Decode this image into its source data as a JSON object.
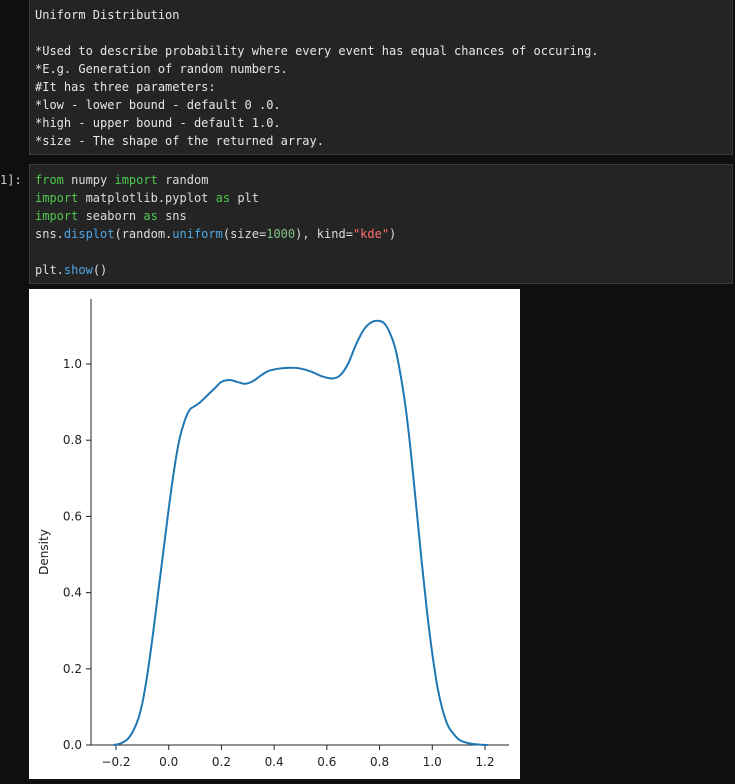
{
  "markdown_cell": {
    "lines": [
      "Uniform Distribution",
      "",
      "*Used to describe probability where every event has equal chances of occuring.",
      "*E.g. Generation of random numbers.",
      "#It has three parameters:",
      "*low - lower bound - default 0 .0.",
      "*high - upper bound - default 1.0.",
      "*size - The shape of the returned array."
    ]
  },
  "code_cell": {
    "prompt": "1]:",
    "line1": {
      "kw1": "from",
      "mod": " numpy ",
      "kw2": "import",
      "name": " random"
    },
    "line2": {
      "kw1": "import",
      "mod": " matplotlib.pyplot ",
      "kw2": "as",
      "name": " plt"
    },
    "line3": {
      "kw1": "import",
      "mod": " seaborn ",
      "kw2": "as",
      "name": " sns"
    },
    "line4": {
      "p1": "sns.",
      "f1": "displot",
      "p2": "(random.",
      "f2": "uniform",
      "p3": "(size=",
      "n1": "1000",
      "p4": "), kind=",
      "s1": "\"kde\"",
      "p5": ")"
    },
    "line6": {
      "p1": "plt.",
      "f1": "show",
      "p2": "()"
    }
  },
  "chart_data": {
    "type": "line",
    "title": "",
    "xlabel": "",
    "ylabel": "Density",
    "xlim": [
      -0.3,
      1.25
    ],
    "ylim": [
      0.0,
      1.15
    ],
    "xticks": [
      "−0.2",
      "0.0",
      "0.2",
      "0.4",
      "0.6",
      "0.8",
      "1.0",
      "1.2"
    ],
    "xtick_values": [
      -0.2,
      0.0,
      0.2,
      0.4,
      0.6,
      0.8,
      1.0,
      1.2
    ],
    "yticks": [
      "0.0",
      "0.2",
      "0.4",
      "0.6",
      "0.8",
      "1.0"
    ],
    "ytick_values": [
      0.0,
      0.2,
      0.4,
      0.6,
      0.8,
      1.0
    ],
    "grid": false,
    "line_color": "#1f77b4",
    "series": [
      {
        "x": [
          -0.21,
          -0.18,
          -0.15,
          -0.12,
          -0.1,
          -0.08,
          -0.06,
          -0.04,
          -0.02,
          0.0,
          0.02,
          0.04,
          0.06,
          0.08,
          0.1,
          0.12,
          0.15,
          0.18,
          0.2,
          0.23,
          0.26,
          0.29,
          0.32,
          0.35,
          0.38,
          0.42,
          0.46,
          0.5,
          0.54,
          0.58,
          0.62,
          0.65,
          0.68,
          0.71,
          0.74,
          0.77,
          0.8,
          0.82,
          0.84,
          0.86,
          0.88,
          0.9,
          0.92,
          0.94,
          0.96,
          0.98,
          1.0,
          1.02,
          1.04,
          1.06,
          1.08,
          1.1,
          1.12,
          1.15,
          1.18,
          1.21
        ],
        "y": [
          0.0,
          0.005,
          0.02,
          0.06,
          0.11,
          0.19,
          0.29,
          0.4,
          0.51,
          0.62,
          0.72,
          0.8,
          0.85,
          0.88,
          0.89,
          0.9,
          0.92,
          0.94,
          0.953,
          0.958,
          0.953,
          0.948,
          0.955,
          0.97,
          0.982,
          0.988,
          0.99,
          0.988,
          0.98,
          0.968,
          0.962,
          0.97,
          1.0,
          1.05,
          1.09,
          1.11,
          1.113,
          1.105,
          1.08,
          1.04,
          0.97,
          0.88,
          0.76,
          0.62,
          0.48,
          0.35,
          0.24,
          0.15,
          0.09,
          0.05,
          0.03,
          0.015,
          0.008,
          0.003,
          0.001,
          0.0
        ]
      }
    ]
  }
}
